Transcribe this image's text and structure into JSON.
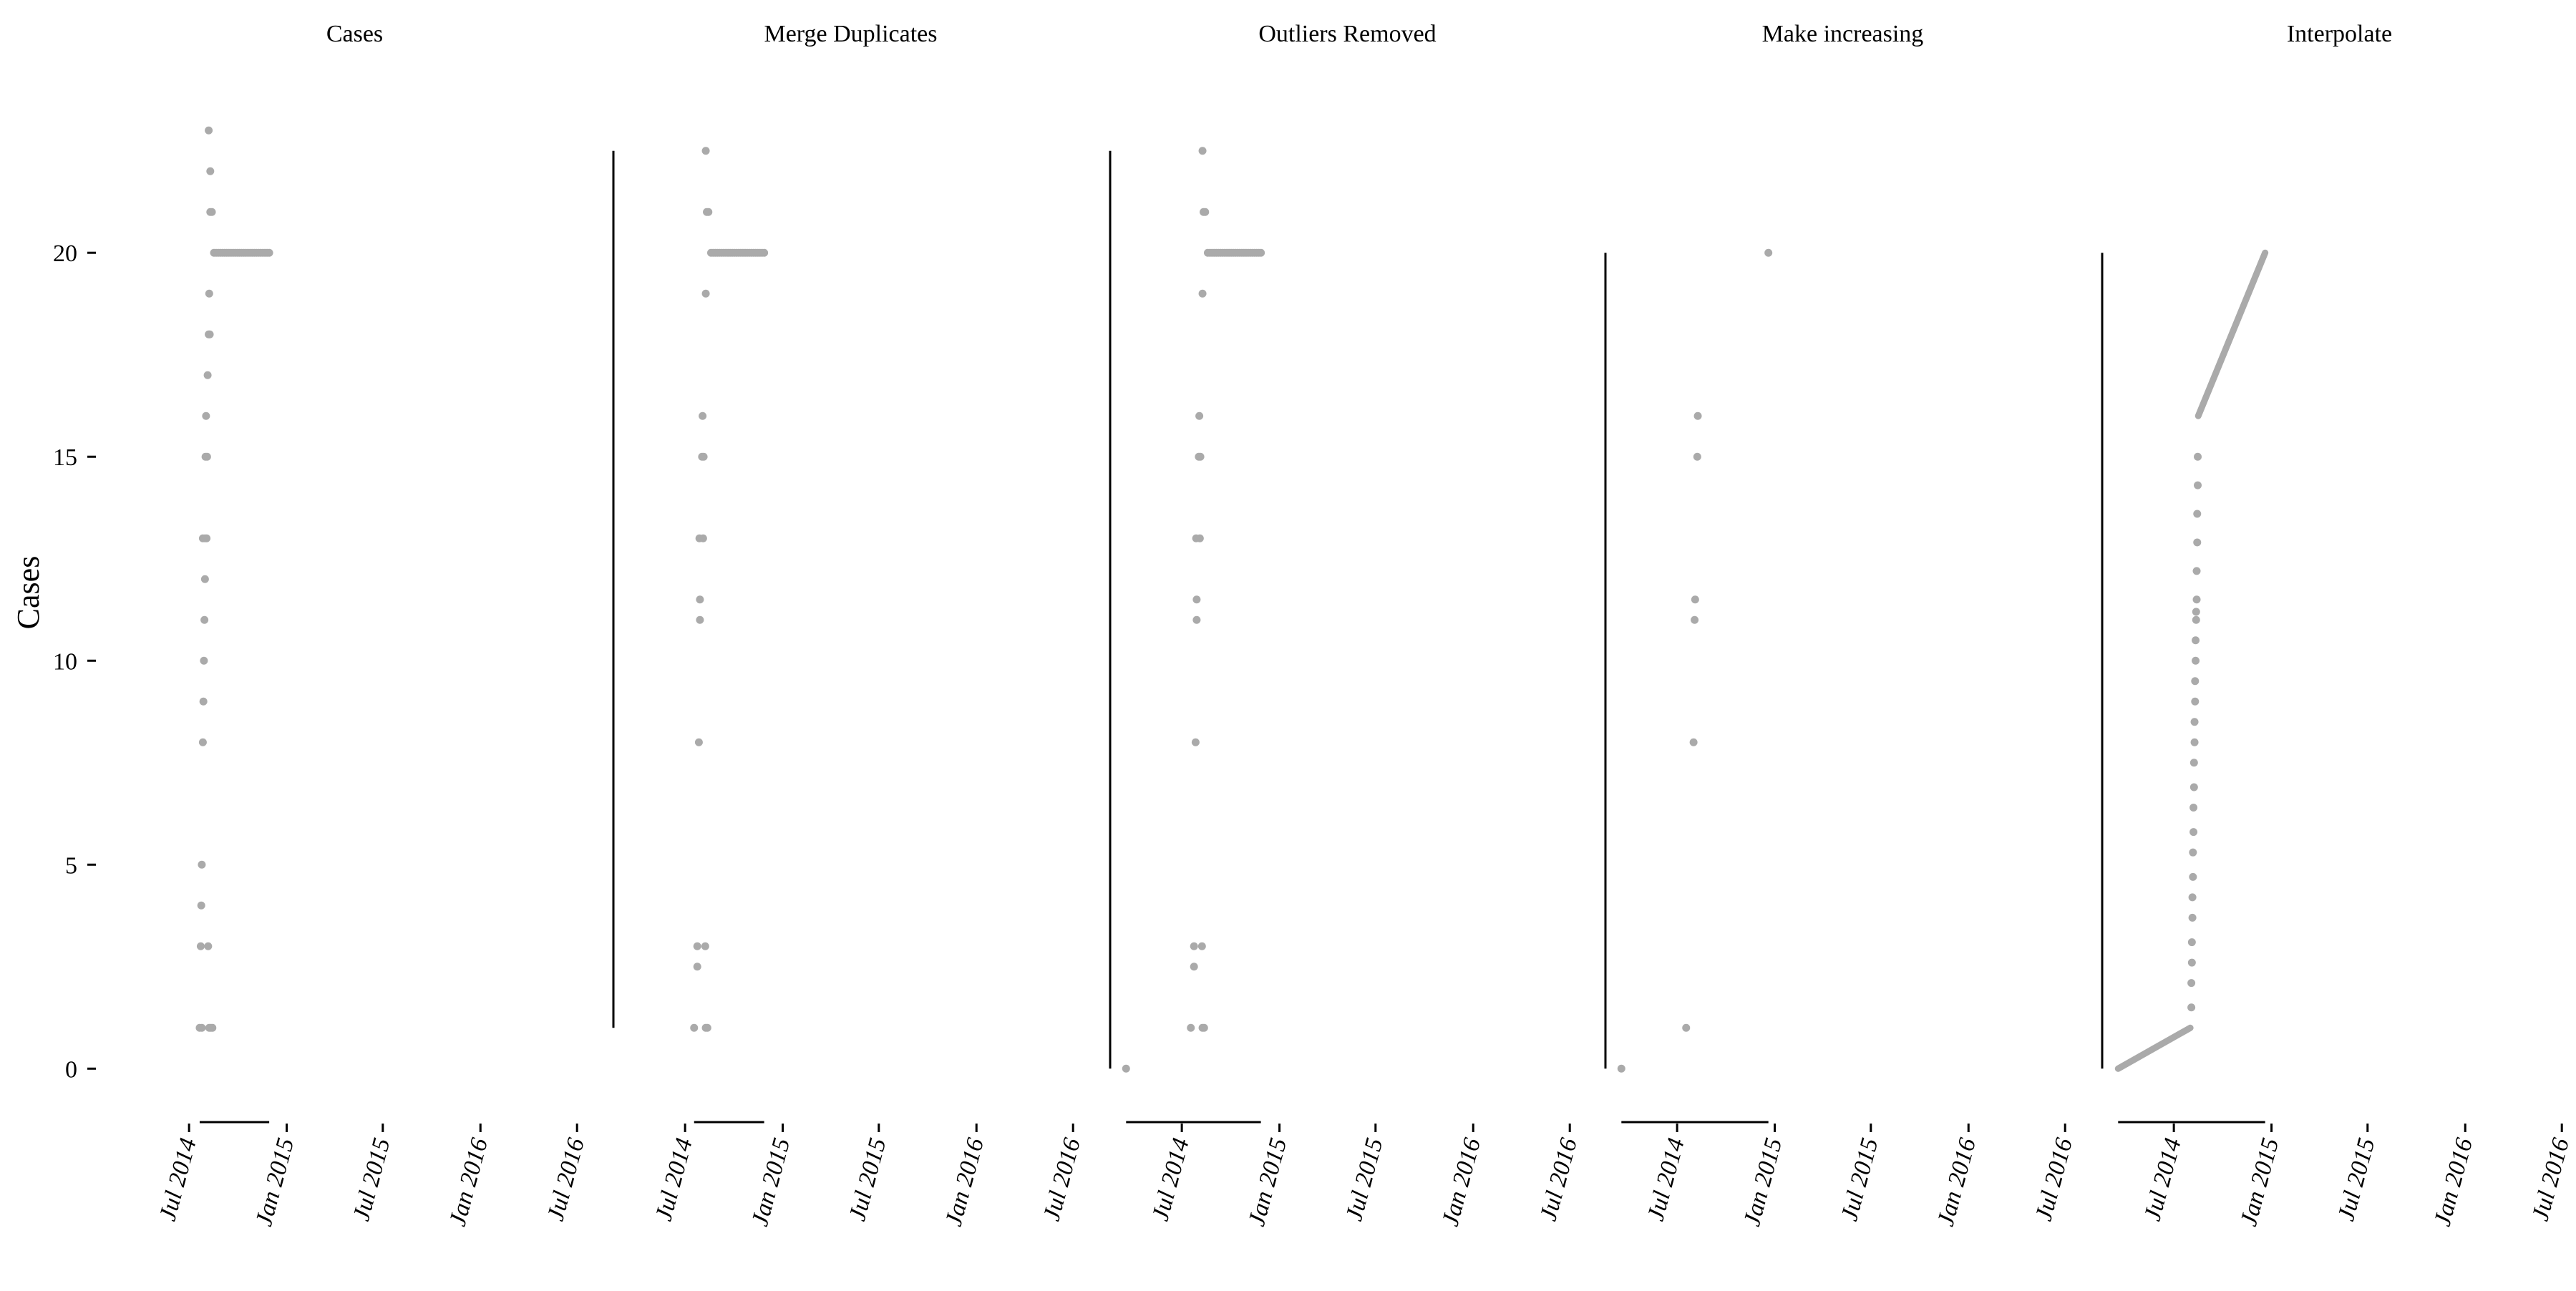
{
  "chart_data": {
    "type": "scatter",
    "ylabel": "Cases",
    "ylim": [
      -1.1,
      23.6
    ],
    "yticks": [
      0,
      5,
      10,
      15,
      20
    ],
    "x_tick_labels": [
      "Jul 2014",
      "Jan 2015",
      "Jul 2015",
      "Jan 2016",
      "Jul 2016"
    ],
    "x_tick_dates": [
      "2014-07-01",
      "2015-01-01",
      "2015-07-01",
      "2016-01-01",
      "2016-07-01"
    ],
    "point_color": "#aaaaaa",
    "axis_color": "#000000",
    "panels": [
      {
        "title": "Cases",
        "points": [
          {
            "x": "2014-07-21",
            "y": 1
          },
          {
            "x": "2014-07-25",
            "y": 1
          },
          {
            "x": "2014-08-08",
            "y": 1
          },
          {
            "x": "2014-08-11",
            "y": 1
          },
          {
            "x": "2014-08-14",
            "y": 1
          },
          {
            "x": "2014-07-23",
            "y": 3
          },
          {
            "x": "2014-08-06",
            "y": 3
          },
          {
            "x": "2014-07-24",
            "y": 4
          },
          {
            "x": "2014-07-25",
            "y": 5
          },
          {
            "x": "2014-07-27",
            "y": 8
          },
          {
            "x": "2014-07-28",
            "y": 9
          },
          {
            "x": "2014-07-29",
            "y": 10
          },
          {
            "x": "2014-07-30",
            "y": 11
          },
          {
            "x": "2014-07-31",
            "y": 12
          },
          {
            "x": "2014-07-27",
            "y": 13
          },
          {
            "x": "2014-07-31",
            "y": 13
          },
          {
            "x": "2014-08-03",
            "y": 13
          },
          {
            "x": "2014-08-01",
            "y": 15
          },
          {
            "x": "2014-08-04",
            "y": 15
          },
          {
            "x": "2014-08-02",
            "y": 16
          },
          {
            "x": "2014-08-05",
            "y": 17
          },
          {
            "x": "2014-08-07",
            "y": 18
          },
          {
            "x": "2014-08-09",
            "y": 18
          },
          {
            "x": "2014-08-08",
            "y": 19
          },
          {
            "x": "2014-08-10",
            "y": 21
          },
          {
            "x": "2014-08-13",
            "y": 21
          },
          {
            "x": "2014-08-10",
            "y": 22
          },
          {
            "x": "2014-08-07",
            "y": 23
          },
          {
            "x": "2014-08-17",
            "y": 20
          },
          {
            "x": "2014-08-21",
            "y": 20
          },
          {
            "x": "2014-08-25",
            "y": 20
          },
          {
            "x": "2014-08-29",
            "y": 20
          },
          {
            "x": "2014-09-02",
            "y": 20
          },
          {
            "x": "2014-09-06",
            "y": 20
          },
          {
            "x": "2014-09-10",
            "y": 20
          },
          {
            "x": "2014-09-14",
            "y": 20
          },
          {
            "x": "2014-09-18",
            "y": 20
          },
          {
            "x": "2014-09-22",
            "y": 20
          },
          {
            "x": "2014-09-26",
            "y": 20
          },
          {
            "x": "2014-09-30",
            "y": 20
          },
          {
            "x": "2014-10-04",
            "y": 20
          },
          {
            "x": "2014-10-08",
            "y": 20
          },
          {
            "x": "2014-10-12",
            "y": 20
          },
          {
            "x": "2014-10-16",
            "y": 20
          },
          {
            "x": "2014-10-20",
            "y": 20
          },
          {
            "x": "2014-10-24",
            "y": 20
          },
          {
            "x": "2014-10-28",
            "y": 20
          },
          {
            "x": "2014-11-01",
            "y": 20
          },
          {
            "x": "2014-11-05",
            "y": 20
          },
          {
            "x": "2014-11-09",
            "y": 20
          },
          {
            "x": "2014-11-13",
            "y": 20
          },
          {
            "x": "2014-11-17",
            "y": 20
          },
          {
            "x": "2014-11-21",
            "y": 20
          },
          {
            "x": "2014-11-25",
            "y": 20
          },
          {
            "x": "2014-11-29",
            "y": 20
          }
        ]
      },
      {
        "title": "Merge Duplicates",
        "points": [
          {
            "x": "2014-07-18",
            "y": 1
          },
          {
            "x": "2014-08-09",
            "y": 1
          },
          {
            "x": "2014-08-12",
            "y": 1
          },
          {
            "x": "2014-07-24",
            "y": 2.5
          },
          {
            "x": "2014-07-24",
            "y": 3
          },
          {
            "x": "2014-08-08",
            "y": 3
          },
          {
            "x": "2014-07-27",
            "y": 8
          },
          {
            "x": "2014-07-29",
            "y": 11
          },
          {
            "x": "2014-07-29",
            "y": 11.5
          },
          {
            "x": "2014-07-28",
            "y": 13
          },
          {
            "x": "2014-08-04",
            "y": 13
          },
          {
            "x": "2014-08-02",
            "y": 15
          },
          {
            "x": "2014-08-05",
            "y": 15
          },
          {
            "x": "2014-08-03",
            "y": 16
          },
          {
            "x": "2014-08-09",
            "y": 19
          },
          {
            "x": "2014-08-11",
            "y": 21
          },
          {
            "x": "2014-08-14",
            "y": 21
          },
          {
            "x": "2014-08-09",
            "y": 22.5
          },
          {
            "x": "2014-08-19",
            "y": 20
          },
          {
            "x": "2014-08-23",
            "y": 20
          },
          {
            "x": "2014-08-27",
            "y": 20
          },
          {
            "x": "2014-08-31",
            "y": 20
          },
          {
            "x": "2014-09-04",
            "y": 20
          },
          {
            "x": "2014-09-08",
            "y": 20
          },
          {
            "x": "2014-09-12",
            "y": 20
          },
          {
            "x": "2014-09-16",
            "y": 20
          },
          {
            "x": "2014-09-20",
            "y": 20
          },
          {
            "x": "2014-09-24",
            "y": 20
          },
          {
            "x": "2014-09-28",
            "y": 20
          },
          {
            "x": "2014-10-02",
            "y": 20
          },
          {
            "x": "2014-10-06",
            "y": 20
          },
          {
            "x": "2014-10-10",
            "y": 20
          },
          {
            "x": "2014-10-14",
            "y": 20
          },
          {
            "x": "2014-10-18",
            "y": 20
          },
          {
            "x": "2014-10-22",
            "y": 20
          },
          {
            "x": "2014-10-26",
            "y": 20
          },
          {
            "x": "2014-10-30",
            "y": 20
          },
          {
            "x": "2014-11-03",
            "y": 20
          },
          {
            "x": "2014-11-07",
            "y": 20
          },
          {
            "x": "2014-11-11",
            "y": 20
          },
          {
            "x": "2014-11-15",
            "y": 20
          },
          {
            "x": "2014-11-19",
            "y": 20
          },
          {
            "x": "2014-11-23",
            "y": 20
          },
          {
            "x": "2014-11-27",
            "y": 20
          }
        ]
      },
      {
        "title": "Outliers Removed",
        "points": [
          {
            "x": "2014-03-18",
            "y": 0
          },
          {
            "x": "2014-07-18",
            "y": 1
          },
          {
            "x": "2014-08-09",
            "y": 1
          },
          {
            "x": "2014-08-12",
            "y": 1
          },
          {
            "x": "2014-07-24",
            "y": 2.5
          },
          {
            "x": "2014-07-24",
            "y": 3
          },
          {
            "x": "2014-08-08",
            "y": 3
          },
          {
            "x": "2014-07-27",
            "y": 8
          },
          {
            "x": "2014-07-29",
            "y": 11
          },
          {
            "x": "2014-07-29",
            "y": 11.5
          },
          {
            "x": "2014-07-28",
            "y": 13
          },
          {
            "x": "2014-08-04",
            "y": 13
          },
          {
            "x": "2014-08-02",
            "y": 15
          },
          {
            "x": "2014-08-05",
            "y": 15
          },
          {
            "x": "2014-08-03",
            "y": 16
          },
          {
            "x": "2014-08-09",
            "y": 19
          },
          {
            "x": "2014-08-11",
            "y": 21
          },
          {
            "x": "2014-08-14",
            "y": 21
          },
          {
            "x": "2014-08-09",
            "y": 22.5
          },
          {
            "x": "2014-08-19",
            "y": 20
          },
          {
            "x": "2014-08-23",
            "y": 20
          },
          {
            "x": "2014-08-27",
            "y": 20
          },
          {
            "x": "2014-08-31",
            "y": 20
          },
          {
            "x": "2014-09-04",
            "y": 20
          },
          {
            "x": "2014-09-08",
            "y": 20
          },
          {
            "x": "2014-09-12",
            "y": 20
          },
          {
            "x": "2014-09-16",
            "y": 20
          },
          {
            "x": "2014-09-20",
            "y": 20
          },
          {
            "x": "2014-09-24",
            "y": 20
          },
          {
            "x": "2014-09-28",
            "y": 20
          },
          {
            "x": "2014-10-02",
            "y": 20
          },
          {
            "x": "2014-10-06",
            "y": 20
          },
          {
            "x": "2014-10-10",
            "y": 20
          },
          {
            "x": "2014-10-14",
            "y": 20
          },
          {
            "x": "2014-10-18",
            "y": 20
          },
          {
            "x": "2014-10-22",
            "y": 20
          },
          {
            "x": "2014-10-26",
            "y": 20
          },
          {
            "x": "2014-10-30",
            "y": 20
          },
          {
            "x": "2014-11-03",
            "y": 20
          },
          {
            "x": "2014-11-07",
            "y": 20
          },
          {
            "x": "2014-11-11",
            "y": 20
          },
          {
            "x": "2014-11-15",
            "y": 20
          },
          {
            "x": "2014-11-19",
            "y": 20
          },
          {
            "x": "2014-11-23",
            "y": 20
          },
          {
            "x": "2014-11-27",
            "y": 20
          }
        ]
      },
      {
        "title": "Make increasing",
        "points": [
          {
            "x": "2014-03-18",
            "y": 0
          },
          {
            "x": "2014-07-18",
            "y": 1
          },
          {
            "x": "2014-08-01",
            "y": 8
          },
          {
            "x": "2014-08-03",
            "y": 11
          },
          {
            "x": "2014-08-04",
            "y": 11.5
          },
          {
            "x": "2014-08-08",
            "y": 15
          },
          {
            "x": "2014-08-09",
            "y": 16
          },
          {
            "x": "2014-12-20",
            "y": 20
          }
        ]
      },
      {
        "title": "Interpolate",
        "points": [
          {
            "x": "2014-08-03",
            "y": 1.5
          },
          {
            "x": "2014-08-03",
            "y": 2.1
          },
          {
            "x": "2014-08-04",
            "y": 2.6
          },
          {
            "x": "2014-08-04",
            "y": 3.1
          },
          {
            "x": "2014-08-05",
            "y": 3.7
          },
          {
            "x": "2014-08-05",
            "y": 4.2
          },
          {
            "x": "2014-08-06",
            "y": 4.7
          },
          {
            "x": "2014-08-06",
            "y": 5.3
          },
          {
            "x": "2014-08-07",
            "y": 5.8
          },
          {
            "x": "2014-08-07",
            "y": 6.4
          },
          {
            "x": "2014-08-08",
            "y": 6.9
          },
          {
            "x": "2014-08-08",
            "y": 7.5
          },
          {
            "x": "2014-08-09",
            "y": 8.0
          },
          {
            "x": "2014-08-09",
            "y": 8.5
          },
          {
            "x": "2014-08-10",
            "y": 9.0
          },
          {
            "x": "2014-08-10",
            "y": 9.5
          },
          {
            "x": "2014-08-11",
            "y": 10.0
          },
          {
            "x": "2014-08-11",
            "y": 10.5
          },
          {
            "x": "2014-08-12",
            "y": 11.0
          },
          {
            "x": "2014-08-12",
            "y": 11.2
          },
          {
            "x": "2014-08-13",
            "y": 11.5
          },
          {
            "x": "2014-08-13",
            "y": 12.2
          },
          {
            "x": "2014-08-14",
            "y": 12.9
          },
          {
            "x": "2014-08-14",
            "y": 13.6
          },
          {
            "x": "2014-08-15",
            "y": 14.3
          },
          {
            "x": "2014-08-15",
            "y": 15.0
          }
        ],
        "lines": [
          [
            {
              "x": "2014-03-18",
              "y": 0
            },
            {
              "x": "2014-08-01",
              "y": 1
            }
          ],
          [
            {
              "x": "2014-08-16",
              "y": 16
            },
            {
              "x": "2014-12-20",
              "y": 20
            }
          ]
        ]
      }
    ]
  }
}
